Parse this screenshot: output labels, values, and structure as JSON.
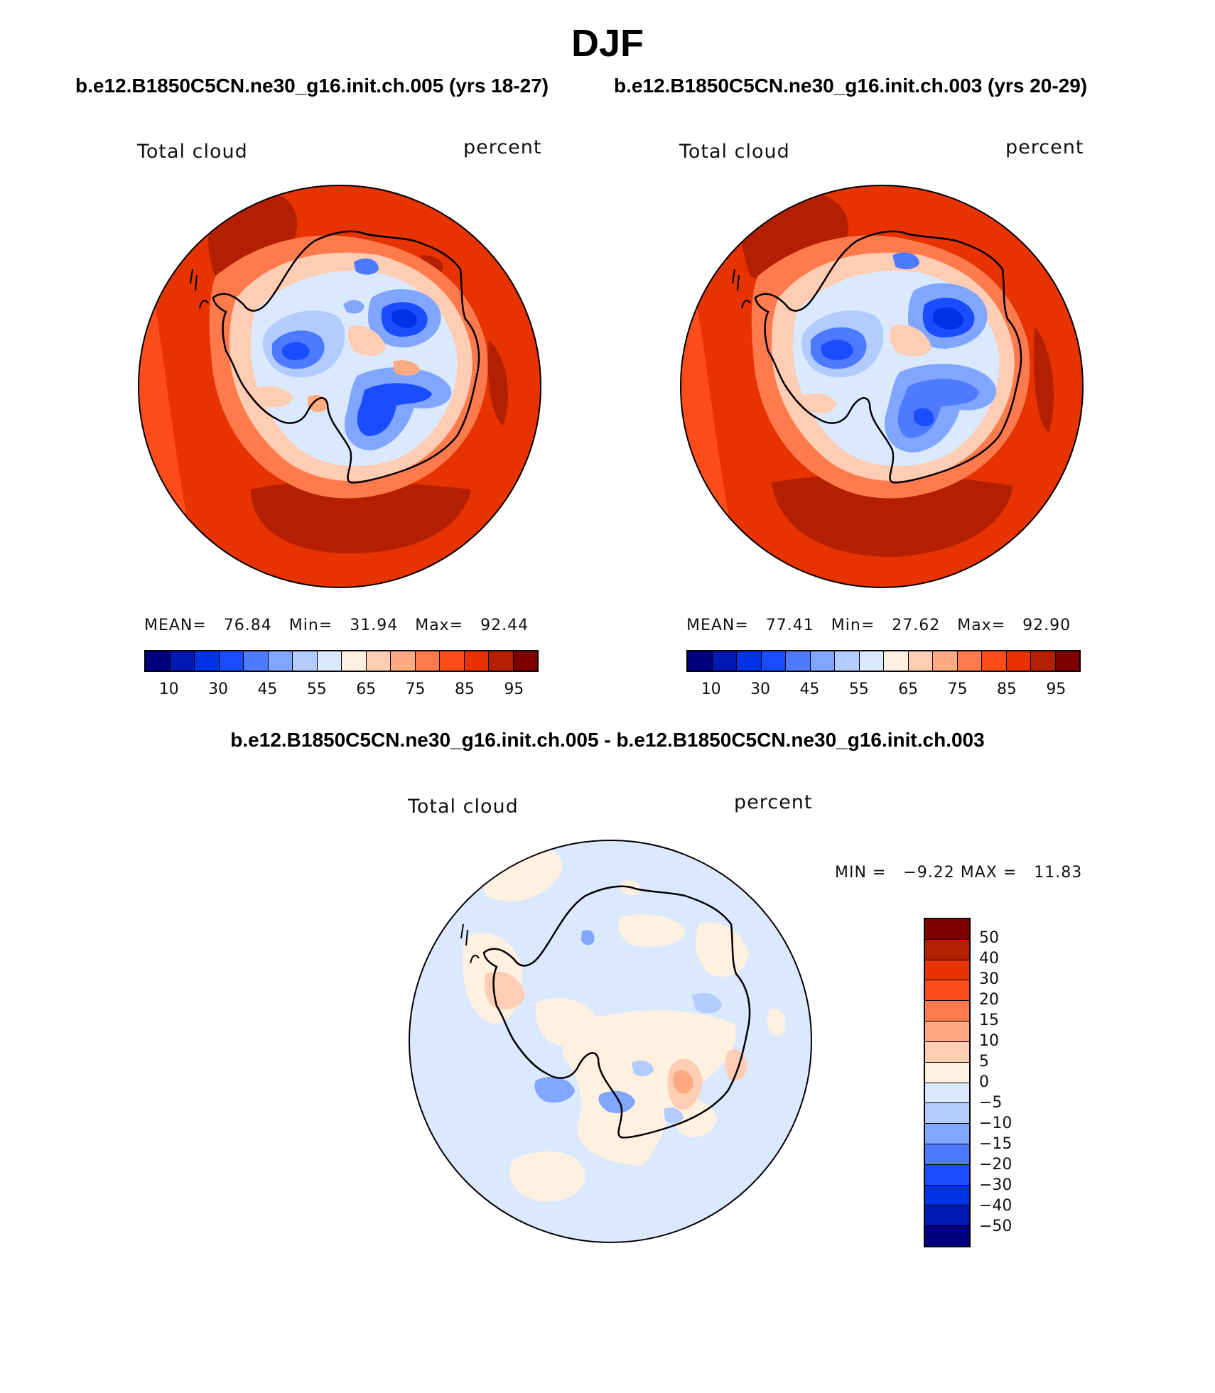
{
  "page_title": "DJF",
  "case_a": "b.e12.B1850C5CN.ne30_g16.init.ch.005 (yrs 18-27)",
  "case_b": "b.e12.B1850C5CN.ne30_g16.init.ch.003 (yrs 20-29)",
  "diff_title": "b.e12.B1850C5CN.ne30_g16.init.ch.005 - b.e12.B1850C5CN.ne30_g16.init.ch.003",
  "panels": [
    {
      "variable": "Total cloud",
      "units": "percent",
      "stats": {
        "mean_label": "MEAN=",
        "mean": "76.84",
        "min_label": "Min=",
        "min": "31.94",
        "max_label": "Max=",
        "max": "92.44"
      }
    },
    {
      "variable": "Total cloud",
      "units": "percent",
      "stats": {
        "mean_label": "MEAN=",
        "mean": "77.41",
        "min_label": "Min=",
        "min": "27.62",
        "max_label": "Max=",
        "max": "92.90"
      }
    },
    {
      "variable": "Total cloud",
      "units": "percent",
      "stats": {
        "min_label": "MIN =",
        "min": "−9.22",
        "max_label": "MAX =",
        "max": "11.83"
      }
    }
  ],
  "colorbar_main": {
    "colors": [
      "#00007f",
      "#0019b3",
      "#0033e6",
      "#1a4dff",
      "#4d7aff",
      "#80a6ff",
      "#b3ccff",
      "#dbe9ff",
      "#fff0e0",
      "#ffcdb3",
      "#ffaa80",
      "#ff7a4d",
      "#ff4d1a",
      "#e63300",
      "#b31f00",
      "#7f0000"
    ],
    "tick_labels": [
      "10",
      "30",
      "45",
      "55",
      "65",
      "75",
      "85",
      "95"
    ]
  },
  "colorbar_diff": {
    "colors": [
      "#7f0000",
      "#b31f00",
      "#e63300",
      "#ff4d1a",
      "#ff7a4d",
      "#ffaa80",
      "#ffcdb3",
      "#fff0e0",
      "#dbe9ff",
      "#b3ccff",
      "#80a6ff",
      "#4d7aff",
      "#1a4dff",
      "#0033e6",
      "#0019b3",
      "#00007f"
    ],
    "tick_labels": [
      "50",
      "40",
      "30",
      "20",
      "15",
      "10",
      "5",
      "0",
      "−5",
      "−10",
      "−15",
      "−20",
      "−30",
      "−40",
      "−50"
    ]
  }
}
